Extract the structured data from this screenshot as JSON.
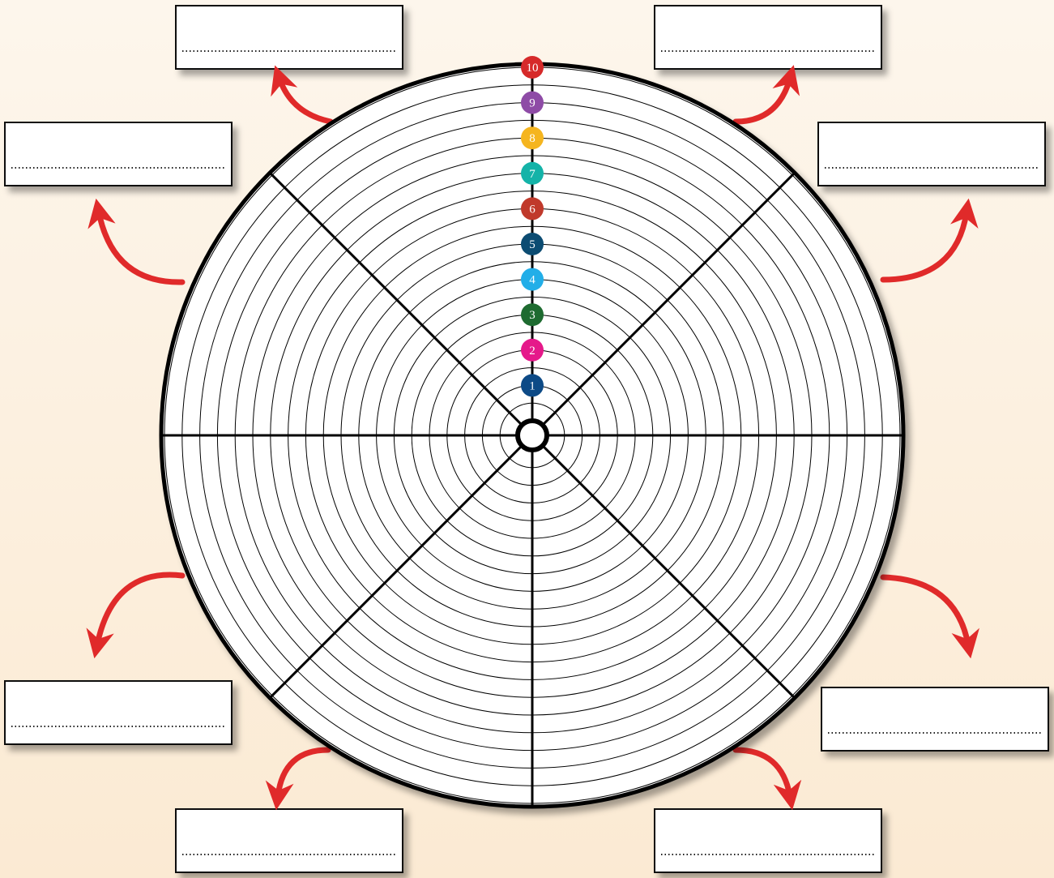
{
  "scale": [
    {
      "label": "1",
      "color": "#0d4a86"
    },
    {
      "label": "2",
      "color": "#e5198a"
    },
    {
      "label": "3",
      "color": "#1e6b30"
    },
    {
      "label": "4",
      "color": "#22aee8"
    },
    {
      "label": "5",
      "color": "#0c4c72"
    },
    {
      "label": "6",
      "color": "#c0392b"
    },
    {
      "label": "7",
      "color": "#14b3a8"
    },
    {
      "label": "8",
      "color": "#f5b51f"
    },
    {
      "label": "9",
      "color": "#8e4ba6"
    },
    {
      "label": "10",
      "color": "#d62a2a"
    }
  ]
}
